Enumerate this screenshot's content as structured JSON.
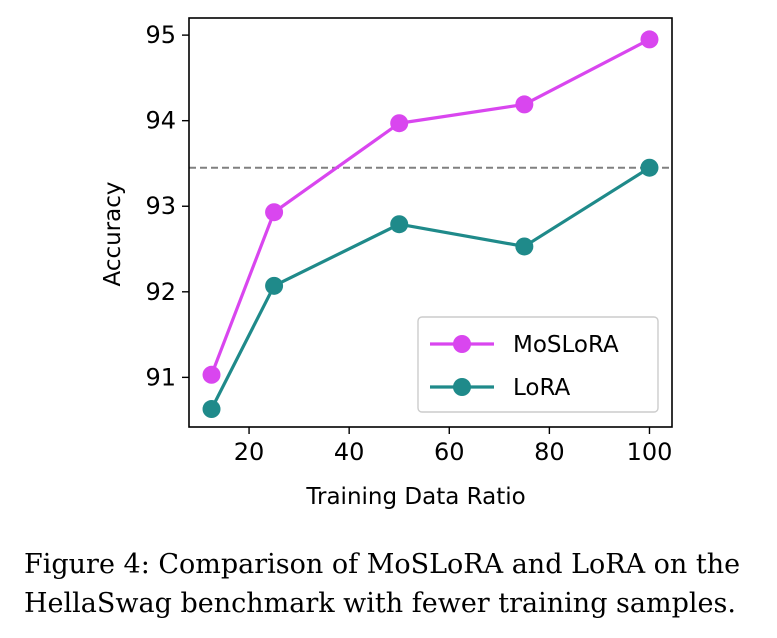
{
  "chart_data": {
    "type": "line",
    "x": [
      12.5,
      25,
      50,
      75,
      100
    ],
    "series": [
      {
        "name": "MoSLoRA",
        "values": [
          91.03,
          92.93,
          93.97,
          94.19,
          94.95
        ],
        "color": "#d946ef"
      },
      {
        "name": "LoRA",
        "values": [
          90.63,
          92.07,
          92.79,
          92.53,
          93.45
        ],
        "color": "#1f8a8a"
      }
    ],
    "reference_line": {
      "y": 93.45,
      "style": "dashed",
      "color": "#808080"
    },
    "xlabel": "Training Data Ratio",
    "ylabel": "Accuracy",
    "xticks": [
      20,
      40,
      60,
      80,
      100
    ],
    "yticks": [
      91,
      92,
      93,
      94,
      95
    ],
    "xlim": [
      8,
      104.5
    ],
    "ylim": [
      90.42,
      95.2
    ],
    "legend_position": "lower-right",
    "grid": false
  },
  "caption": "Figure 4: Comparison of MoSLoRA and LoRA on the HellaSwag benchmark with fewer training samples."
}
